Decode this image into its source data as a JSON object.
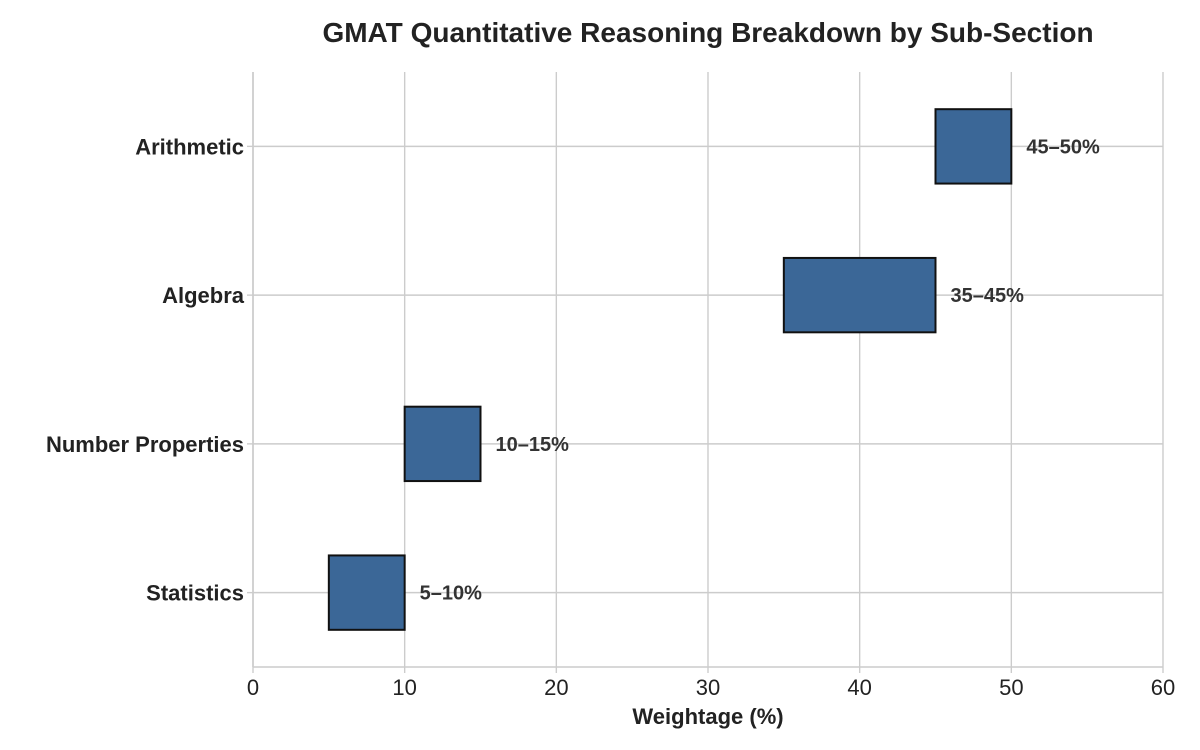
{
  "chart_data": {
    "type": "bar",
    "orientation": "horizontal",
    "title": "GMAT Quantitative Reasoning Breakdown by Sub-Section",
    "xlabel": "Weightage (%)",
    "ylabel": "",
    "xlim": [
      0,
      60
    ],
    "xticks": [
      0,
      10,
      20,
      30,
      40,
      50,
      60
    ],
    "grid": true,
    "bar_color": "#3b6797",
    "bar_edge_color": "#111111",
    "categories": [
      "Arithmetic",
      "Algebra",
      "Number Properties",
      "Statistics"
    ],
    "series": [
      {
        "ranges": [
          [
            45,
            50
          ],
          [
            35,
            45
          ],
          [
            10,
            15
          ],
          [
            5,
            10
          ]
        ],
        "labels": [
          "45–50%",
          "35–45%",
          "10–15%",
          "5–10%"
        ]
      }
    ]
  }
}
